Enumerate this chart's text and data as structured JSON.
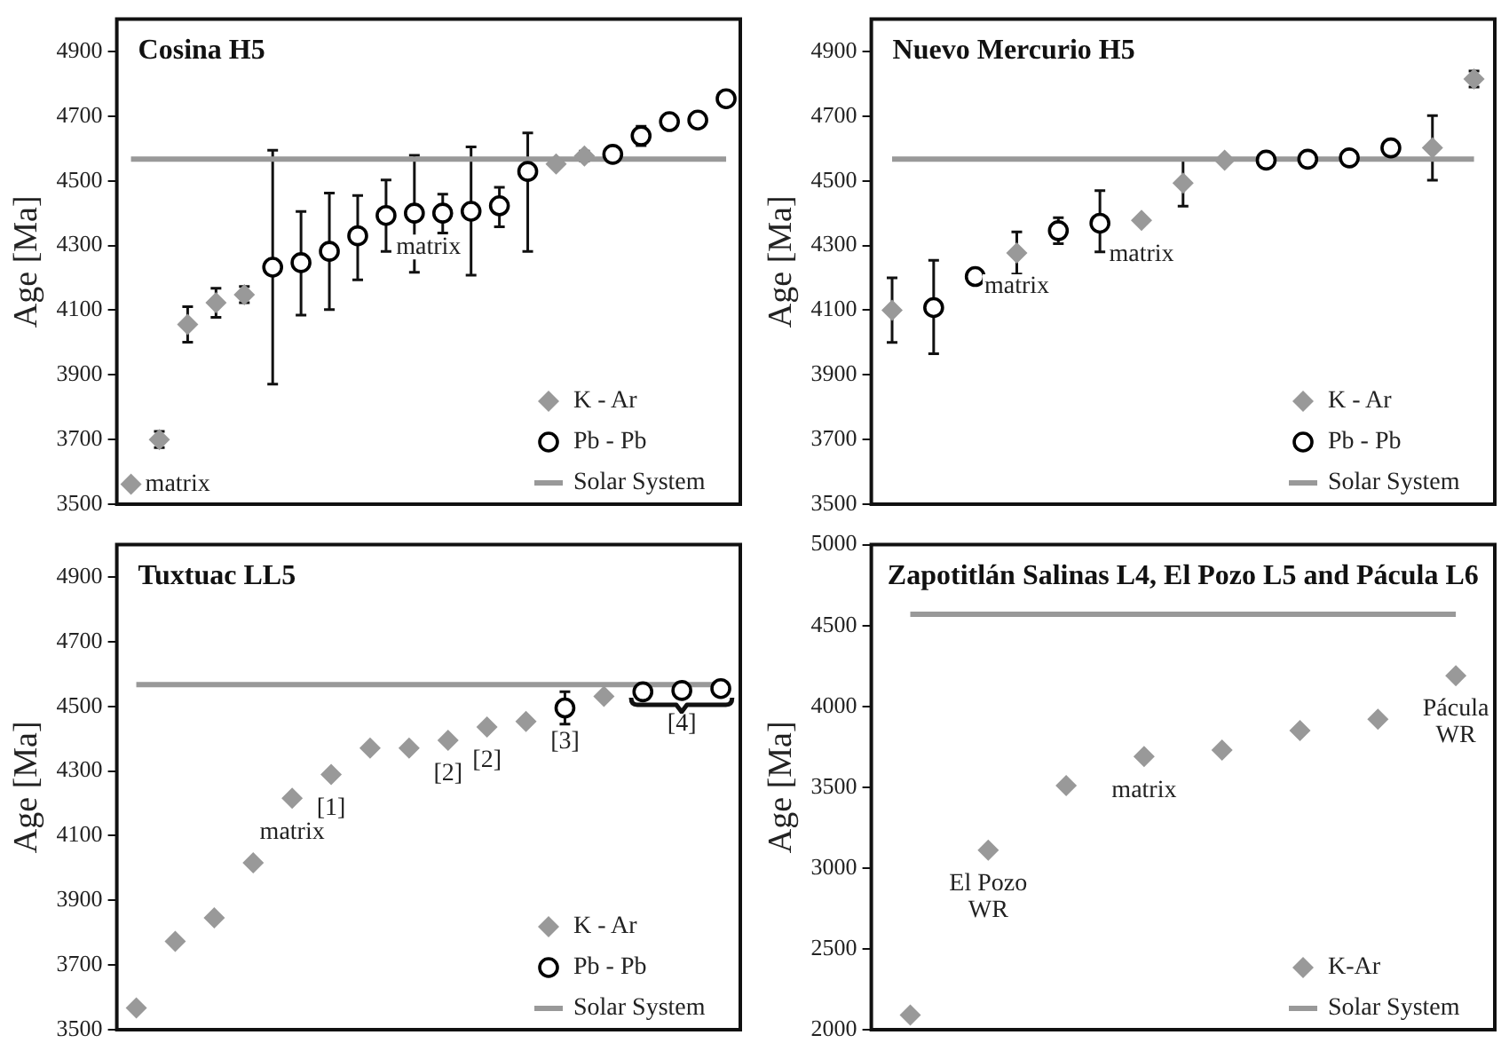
{
  "chart_data": [
    {
      "type": "scatter",
      "title": "Cosina H5",
      "ylabel": "Age [Ma]",
      "categories": [
        null,
        null,
        null,
        null,
        null,
        null,
        null,
        null,
        null,
        null,
        null,
        null,
        null,
        null,
        null,
        null,
        null,
        null,
        null,
        null,
        null,
        null
      ],
      "ylim": [
        3500,
        5000
      ],
      "yticks": [
        3500,
        3700,
        3900,
        4100,
        4300,
        4500,
        4700,
        4900
      ],
      "tick_labels": "y",
      "legend": "bottom right",
      "annotations": [
        "matrix",
        {
          "text": "matrix",
          "y": 4400
        }
      ],
      "series": [
        {
          "name": "K - Ar",
          "marker": "diamond",
          "color": "#999999",
          "values": [
            3562,
            3700,
            4056,
            4123,
            4148,
            null,
            null,
            null,
            null,
            null,
            null,
            null,
            null,
            null,
            null,
            4552,
            4577,
            null,
            null,
            null,
            null,
            null
          ],
          "errors": [
            null,
            25,
            55,
            45,
            25,
            null,
            null,
            null,
            null,
            null,
            null,
            null,
            null,
            null,
            null,
            null,
            15,
            null,
            null,
            null,
            null,
            null
          ]
        },
        {
          "name": "Pb - Pb",
          "marker": "circle",
          "color": "#000000",
          "values": [
            null,
            null,
            null,
            null,
            null,
            4233,
            4247,
            4282,
            4330,
            4393,
            4400,
            4400,
            4406,
            4423,
            4529,
            null,
            null,
            4582,
            4639,
            4683,
            4688,
            4754
          ],
          "errors": [
            null,
            null,
            null,
            null,
            null,
            [
              3871,
              4595
            ],
            [
              4085,
              4405
            ],
            [
              4102,
              4462
            ],
            [
              4194,
              4455
            ],
            [
              4282,
              4503
            ],
            [
              4217,
              4579
            ],
            [
              4339,
              4459
            ],
            [
              4208,
              4605
            ],
            [
              4358,
              4480
            ],
            [
              4282,
              4648
            ],
            null,
            null,
            null,
            30,
            null,
            null,
            null
          ]
        },
        {
          "name": "Solar System",
          "type": "line",
          "color": "#999999",
          "values": [
            4567,
            4567,
            4567,
            4567,
            4567,
            4567,
            4567,
            4567,
            4567,
            4567,
            4567,
            4567,
            4567,
            4567,
            4567,
            4567,
            4567,
            4567,
            4567,
            4567,
            4567,
            4567
          ]
        }
      ]
    },
    {
      "type": "scatter",
      "title": "Nuevo Mercurio H5",
      "ylabel": "Age [Ma]",
      "categories": [
        null,
        null,
        null,
        null,
        null,
        null,
        null,
        null,
        null,
        null,
        null,
        null,
        null,
        null,
        null
      ],
      "ylim": [
        3500,
        5000
      ],
      "yticks": [
        3500,
        3700,
        3900,
        4100,
        4300,
        4500,
        4700,
        4900
      ],
      "tick_labels": "y",
      "legend": "bottom right",
      "annotations": [
        {
          "text": "matrix",
          "y": 4277
        },
        {
          "text": "matrix",
          "y": 4378
        }
      ],
      "series": [
        {
          "name": "K - Ar",
          "marker": "diamond",
          "color": "#999999",
          "values": [
            4100,
            null,
            null,
            4277,
            null,
            null,
            4378,
            4493,
            4564,
            null,
            null,
            null,
            null,
            4602,
            4815
          ],
          "errors": [
            100,
            null,
            null,
            65,
            null,
            null,
            null,
            [
              4422,
              4569
            ],
            null,
            null,
            null,
            null,
            null,
            100,
            25
          ]
        },
        {
          "name": "Pb - Pb",
          "marker": "circle",
          "color": "#000000",
          "values": [
            null,
            4108,
            4204,
            null,
            4346,
            4369,
            null,
            null,
            null,
            4564,
            4567,
            4571,
            4602,
            null,
            null
          ],
          "errors": [
            null,
            [
              3965,
              4254
            ],
            null,
            null,
            40,
            [
              4280,
              4470
            ],
            null,
            null,
            null,
            null,
            null,
            null,
            null,
            null,
            null
          ]
        },
        {
          "name": "Solar System",
          "type": "line",
          "color": "#999999",
          "values": [
            4567,
            4567,
            4567,
            4567,
            4567,
            4567,
            4567,
            4567,
            4567,
            4567,
            4567,
            4567,
            4567,
            4567,
            4567
          ]
        }
      ]
    },
    {
      "type": "scatter",
      "title": "Tuxtuac LL5",
      "ylabel": "Age [Ma]",
      "categories": [
        null,
        null,
        null,
        null,
        null,
        null,
        null,
        null,
        null,
        null,
        null,
        null,
        null,
        null,
        null,
        null
      ],
      "ylim": [
        3500,
        5000
      ],
      "yticks": [
        3500,
        3700,
        3900,
        4100,
        4300,
        4500,
        4700,
        4900
      ],
      "tick_labels": "y",
      "legend": "bottom right",
      "annotations": [
        {
          "text": "matrix",
          "y": 4216
        },
        {
          "text": "[1]",
          "y": 4289
        },
        {
          "text": "[2]",
          "y": 4395
        },
        {
          "text": "[2]",
          "y": 4436
        },
        {
          "text": "[3]",
          "y": 4495
        },
        {
          "text": "[4]",
          "y": 4549
        }
      ],
      "series": [
        {
          "name": "K - Ar",
          "marker": "diamond",
          "color": "#999999",
          "values": [
            3567,
            3773,
            3846,
            4016,
            4216,
            4289,
            4371,
            4371,
            4395,
            4436,
            4453,
            null,
            4531,
            null,
            null,
            null
          ]
        },
        {
          "name": "Pb - Pb",
          "marker": "circle",
          "color": "#000000",
          "values": [
            null,
            null,
            null,
            null,
            null,
            null,
            null,
            null,
            null,
            null,
            null,
            4495,
            null,
            4545,
            4549,
            4555
          ],
          "errors": [
            null,
            null,
            null,
            null,
            null,
            null,
            null,
            null,
            null,
            null,
            null,
            50,
            null,
            null,
            null,
            null
          ]
        },
        {
          "name": "Solar System",
          "type": "line",
          "color": "#999999",
          "values": [
            4567,
            4567,
            4567,
            4567,
            4567,
            4567,
            4567,
            4567,
            4567,
            4567,
            4567,
            4567,
            4567,
            4567,
            4567,
            4567
          ]
        }
      ]
    },
    {
      "type": "scatter",
      "title": "Zapotitlán Salinas L4, El Pozo L5 and Pácula L6",
      "ylabel": "Age [Ma]",
      "categories": [
        null,
        null,
        null,
        null,
        null,
        null,
        null,
        null
      ],
      "ylim": [
        2000,
        5000
      ],
      "yticks": [
        2000,
        2500,
        3000,
        3500,
        4000,
        4500,
        5000
      ],
      "tick_labels": "y",
      "legend": "bottom right",
      "annotations": [
        {
          "text": "El Pozo WR",
          "y": 3110
        },
        {
          "text": "matrix",
          "y": 3690
        },
        {
          "text": "Pácula WR",
          "y": 4190
        }
      ],
      "series": [
        {
          "name": "K-Ar",
          "marker": "diamond",
          "color": "#999999",
          "values": [
            2090,
            3110,
            3510,
            3690,
            3730,
            3850,
            3920,
            4190
          ]
        },
        {
          "name": "Solar System",
          "type": "line",
          "color": "#999999",
          "values": [
            4570,
            4570,
            4570,
            4570,
            4570,
            4570,
            4570,
            4570
          ]
        }
      ]
    }
  ]
}
